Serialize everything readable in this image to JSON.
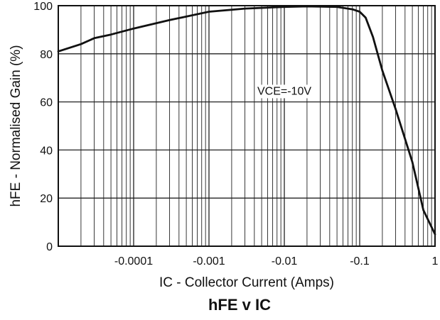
{
  "chart_data": {
    "type": "line",
    "title": "hFE v IC",
    "xlabel": "IC - Collector Current (Amps)",
    "ylabel": "hFE - Normalised Gain (%)",
    "x_scale": "log",
    "xlim": [
      1e-05,
      1
    ],
    "ylim": [
      0,
      100
    ],
    "grid": true,
    "x_ticks": [
      0.0001,
      0.001,
      0.01,
      0.1,
      1
    ],
    "x_tick_labels": [
      "-0.0001",
      "-0.001",
      "-0.01",
      "-0.1",
      "1"
    ],
    "y_ticks": [
      0,
      20,
      40,
      60,
      80,
      100
    ],
    "y_tick_labels": [
      "0",
      "20",
      "40",
      "60",
      "80",
      "100"
    ],
    "annotation": {
      "text": "VCE=-10V",
      "x": 0.01,
      "y": 63
    },
    "series": [
      {
        "x": [
          1e-05,
          2e-05,
          3e-05,
          5e-05,
          0.0001,
          0.0003,
          0.001,
          0.003,
          0.01,
          0.02,
          0.05,
          0.08,
          0.1,
          0.12,
          0.15,
          0.2,
          0.3,
          0.5,
          0.7,
          1
        ],
        "y": [
          81,
          84,
          86.5,
          88,
          90.5,
          94,
          97.5,
          98.8,
          99.5,
          99.7,
          99.5,
          98.5,
          97.5,
          95,
          87,
          73,
          57,
          35,
          15,
          5
        ]
      }
    ]
  }
}
